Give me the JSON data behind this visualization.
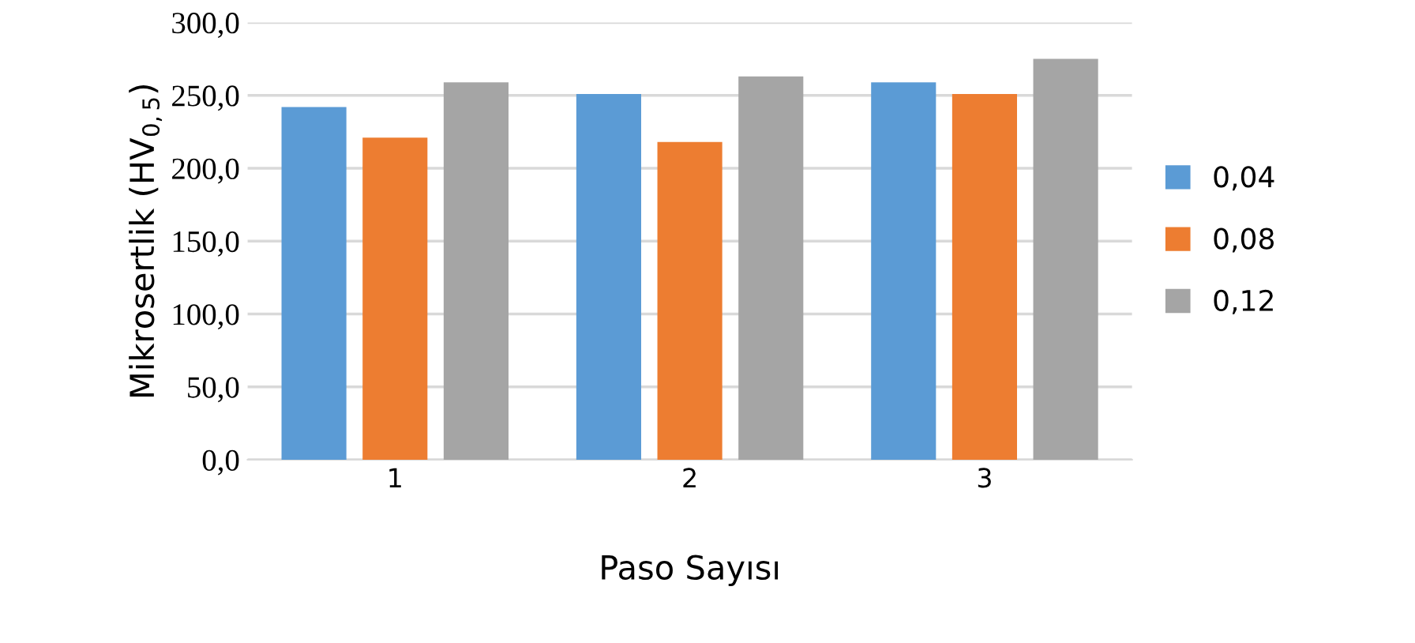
{
  "chart_data": {
    "type": "bar",
    "xlabel": "Paso Sayısı",
    "ylabel": "Mikrosertlik (HV$_{0,5}$)",
    "categories": [
      "1",
      "2",
      "3"
    ],
    "series": [
      {
        "name": "0,04",
        "color": "#5b9bd5",
        "values": [
          242,
          251,
          259
        ]
      },
      {
        "name": "0,08",
        "color": "#ed7d31",
        "values": [
          221,
          218,
          251
        ]
      },
      {
        "name": "0,12",
        "color": "#a5a5a5",
        "values": [
          259,
          263,
          275
        ]
      }
    ],
    "ylim": [
      0,
      300
    ],
    "yticks": [
      {
        "value": 0,
        "label": "0,0"
      },
      {
        "value": 50,
        "label": "50,0"
      },
      {
        "value": 100,
        "label": "100,0"
      },
      {
        "value": 150,
        "label": "150,0"
      },
      {
        "value": 200,
        "label": "200,0"
      },
      {
        "value": 250,
        "label": "250,0"
      },
      {
        "value": 300,
        "label": "300,0"
      }
    ],
    "grid": "y",
    "legend": "right"
  }
}
